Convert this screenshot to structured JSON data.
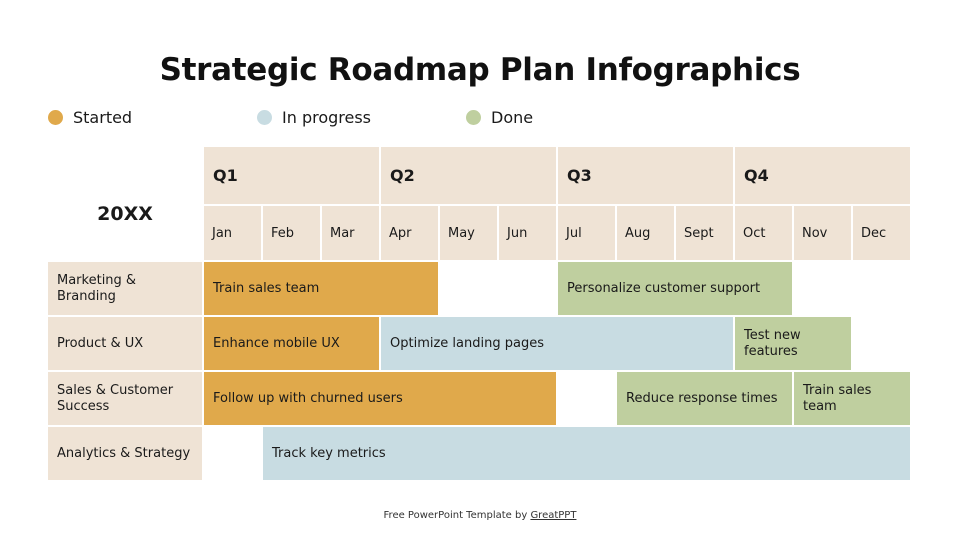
{
  "title": "Strategic Roadmap Plan Infographics",
  "colors": {
    "header": "#efe3d5",
    "started": "#e0a94b",
    "in_progress": "#c8dce2",
    "done": "#bfcf9f"
  },
  "legend": [
    {
      "label": "Started",
      "status": "started"
    },
    {
      "label": "In progress",
      "status": "in_progress"
    },
    {
      "label": "Done",
      "status": "done"
    }
  ],
  "year": "20XX",
  "quarters": [
    "Q1",
    "Q2",
    "Q3",
    "Q4"
  ],
  "months": [
    "Jan",
    "Feb",
    "Mar",
    "Apr",
    "May",
    "Jun",
    "Jul",
    "Aug",
    "Sept",
    "Oct",
    "Nov",
    "Dec"
  ],
  "rows": [
    {
      "label": "Marketing & Branding",
      "tasks": [
        {
          "label": "Train sales team",
          "start_month": 1,
          "end_month": 4,
          "status": "started"
        },
        {
          "label": "Personalize customer support",
          "start_month": 7,
          "end_month": 10,
          "status": "done"
        }
      ]
    },
    {
      "label": "Product & UX",
      "tasks": [
        {
          "label": "Enhance mobile UX",
          "start_month": 1,
          "end_month": 3,
          "status": "started"
        },
        {
          "label": "Optimize landing pages",
          "start_month": 4,
          "end_month": 9,
          "status": "in_progress"
        },
        {
          "label": "Test new features",
          "start_month": 10,
          "end_month": 11,
          "status": "done"
        }
      ]
    },
    {
      "label": "Sales & Customer Success",
      "tasks": [
        {
          "label": "Follow up with churned users",
          "start_month": 1,
          "end_month": 6,
          "status": "started"
        },
        {
          "label": "Reduce response times",
          "start_month": 8,
          "end_month": 10,
          "status": "done"
        },
        {
          "label": "Train sales team",
          "start_month": 11,
          "end_month": 12,
          "status": "done"
        }
      ]
    },
    {
      "label": "Analytics & Strategy",
      "tasks": [
        {
          "label": "Track key metrics",
          "start_month": 2,
          "end_month": 12,
          "status": "in_progress"
        }
      ]
    }
  ],
  "footer": {
    "prefix": "Free PowerPoint Template by",
    "link": "GreatPPT"
  }
}
